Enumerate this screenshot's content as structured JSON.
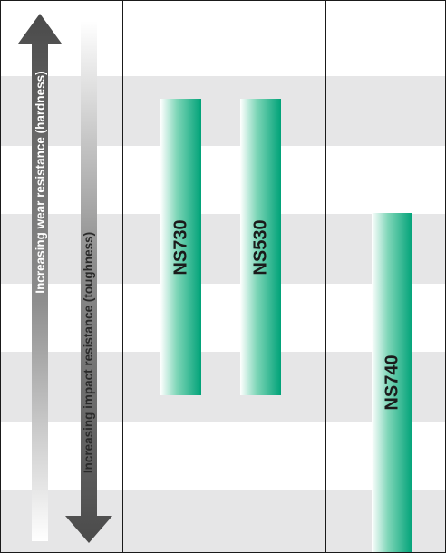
{
  "grades": [
    {
      "id": "ns730",
      "label": "NS730"
    },
    {
      "id": "ns530",
      "label": "NS530"
    },
    {
      "id": "ns740",
      "label": "NS740"
    }
  ],
  "arrows": {
    "wear": {
      "label": "Increasing wear resistance (hardness)",
      "direction": "up"
    },
    "impact": {
      "label": "Increasing impact resistance (toughness)",
      "direction": "down"
    }
  },
  "colors": {
    "accent_green": "#00a278",
    "band_grey": "#e6e6e7",
    "arrow_dark": "#4a4a4a",
    "frame": "#1a1a1a"
  }
}
